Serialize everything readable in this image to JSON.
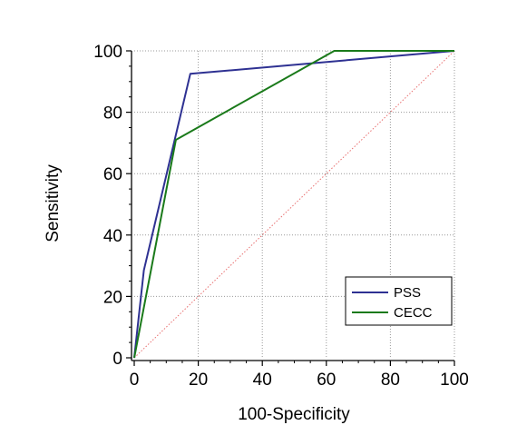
{
  "chart_data": {
    "type": "line",
    "title": "",
    "xlabel": "100-Specificity",
    "ylabel": "Sensitivity",
    "xlim": [
      0,
      100
    ],
    "ylim": [
      0,
      100
    ],
    "xticks": [
      "0",
      "20",
      "40",
      "60",
      "80",
      "100"
    ],
    "yticks": [
      "0",
      "20",
      "40",
      "60",
      "80",
      "100"
    ],
    "grid": true,
    "legend_position": "bottom-right",
    "series": [
      {
        "name": "PSS",
        "color": "#2e3192",
        "x": [
          0,
          3,
          17.5,
          100
        ],
        "y": [
          0,
          28.5,
          92.5,
          100
        ]
      },
      {
        "name": "CECC",
        "color": "#1a7a1a",
        "x": [
          0,
          13,
          62.5,
          100
        ],
        "y": [
          0,
          71,
          100,
          100
        ]
      }
    ],
    "reference_line": {
      "color": "#e87070",
      "x": [
        0,
        100
      ],
      "y": [
        0,
        100
      ]
    }
  }
}
